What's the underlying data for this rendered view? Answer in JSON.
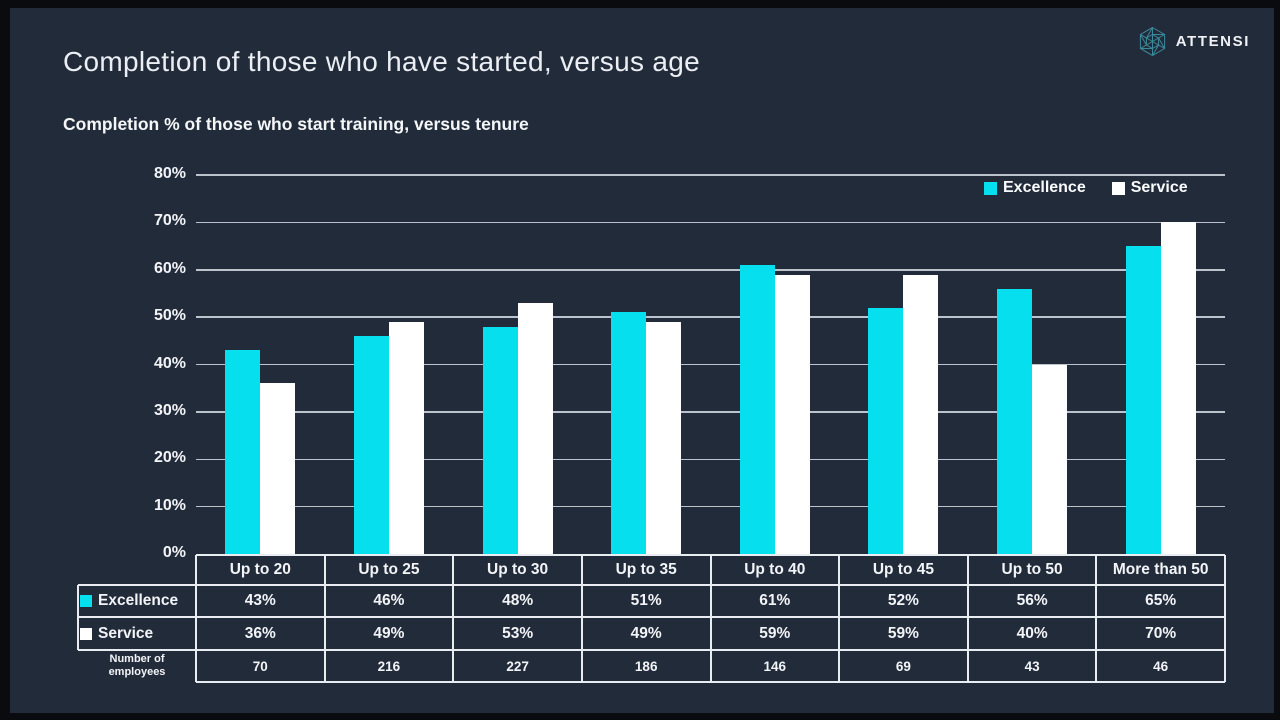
{
  "slide": {
    "title": "Completion of those who have started, versus age",
    "subtitle": "Completion % of those who start training, versus tenure",
    "logo": {
      "text": "ATTENSI",
      "icon": "attensi-hexagon-icon"
    }
  },
  "colors": {
    "frame": "#0A0B0E",
    "background": "#222B3A",
    "excellence": "#06DFEE",
    "service": "#FFFFFF",
    "gridline": "#BDC3CD",
    "table_border": "#E9ECF0",
    "text": "#F2F4F7",
    "logo_teal": "#3B8A9B"
  },
  "chart_data": {
    "type": "bar",
    "title": "Completion % of those who start training, versus tenure",
    "categories": [
      "Up to 20",
      "Up to 25",
      "Up to 30",
      "Up to 35",
      "Up to 40",
      "Up to 45",
      "Up to 50",
      "More than 50"
    ],
    "series": [
      {
        "name": "Excellence",
        "color": "#06DFEE",
        "values": [
          43,
          46,
          48,
          51,
          61,
          52,
          56,
          65
        ],
        "unit": "%"
      },
      {
        "name": "Service",
        "color": "#FFFFFF",
        "values": [
          36,
          49,
          53,
          49,
          59,
          59,
          40,
          70
        ],
        "unit": "%"
      }
    ],
    "extra_rows": [
      {
        "label": "Number of employees",
        "values": [
          70,
          216,
          227,
          186,
          146,
          69,
          43,
          46
        ]
      }
    ],
    "xlabel": "",
    "ylabel": "",
    "ylim": [
      0,
      80
    ],
    "ytick_step": 10,
    "ytick_suffix": "%",
    "grid": "horizontal",
    "legend_position": "top-right"
  }
}
